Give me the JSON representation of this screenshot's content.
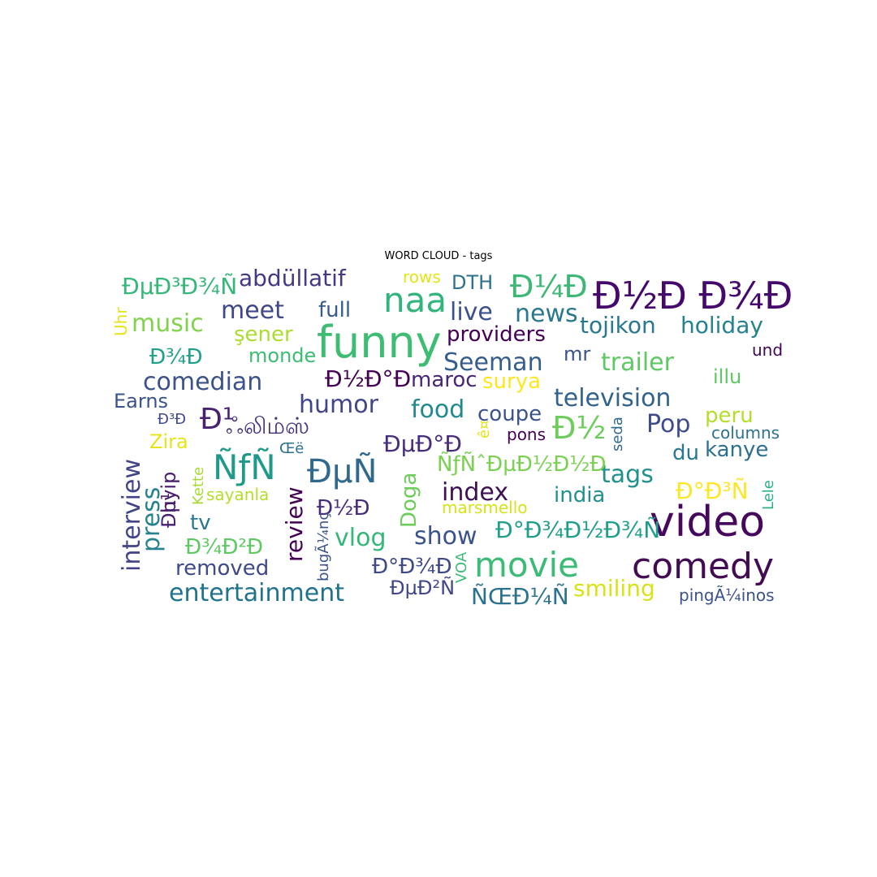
{
  "chart_data": {
    "type": "wordcloud",
    "title": "WORD CLOUD - tags",
    "words": [
      {
        "text": "Ð½Ð Ð¾Ð",
        "color": "#45086b",
        "size": 46
      },
      {
        "text": "video",
        "color": "#46085c",
        "size": 52
      },
      {
        "text": "funny",
        "color": "#3fbc73",
        "size": 54
      },
      {
        "text": "comedy",
        "color": "#440b55",
        "size": 44
      },
      {
        "text": "movie",
        "color": "#3bbb75",
        "size": 42
      },
      {
        "text": "naa",
        "color": "#32b57c",
        "size": 42
      },
      {
        "text": "ÑƒÑ",
        "color": "#1f9a8a",
        "size": 42
      },
      {
        "text": "ÐµÑ",
        "color": "#31688e",
        "size": 40
      },
      {
        "text": "Ð¼Ð",
        "color": "#3db775",
        "size": 38
      },
      {
        "text": "Ð½",
        "color": "#6ccd5a",
        "size": 38
      },
      {
        "text": "Ð¹",
        "color": "#482071",
        "size": 36
      },
      {
        "text": "entertainment",
        "color": "#21728d",
        "size": 30
      },
      {
        "text": "index",
        "color": "#3e1056",
        "size": 30
      },
      {
        "text": "Seeman",
        "color": "#355e8d",
        "size": 30
      },
      {
        "text": "comedian",
        "color": "#3b528b",
        "size": 30
      },
      {
        "text": "television",
        "color": "#33638d",
        "size": 30
      },
      {
        "text": "Pop",
        "color": "#3e4c8a",
        "size": 30
      },
      {
        "text": "humor",
        "color": "#404688",
        "size": 30
      },
      {
        "text": "food",
        "color": "#23898e",
        "size": 30
      },
      {
        "text": "show",
        "color": "#3a538b",
        "size": 30
      },
      {
        "text": "vlog",
        "color": "#35b779",
        "size": 30
      },
      {
        "text": "tags",
        "color": "#21918c",
        "size": 30
      },
      {
        "text": "trailer",
        "color": "#5ec962",
        "size": 30
      },
      {
        "text": "live",
        "color": "#3b518b",
        "size": 30
      },
      {
        "text": "news",
        "color": "#2a788e",
        "size": 30
      },
      {
        "text": "music",
        "color": "#81d34d",
        "size": 30
      },
      {
        "text": "meet",
        "color": "#3f4889",
        "size": 30
      },
      {
        "text": "interview",
        "color": "#414487",
        "size": 30
      },
      {
        "text": "press",
        "color": "#26828e",
        "size": 30
      },
      {
        "text": "review",
        "color": "#440154",
        "size": 28
      },
      {
        "text": "smiling",
        "color": "#d8e219",
        "size": 28
      },
      {
        "text": "ÑŒÐ¼Ñ",
        "color": "#2c728e",
        "size": 28
      },
      {
        "text": "Ð°Ð¾Ð½Ð¾Ñ",
        "color": "#1f9e89",
        "size": 28
      },
      {
        "text": "ÐµÐ³Ð¾Ñ",
        "color": "#35b779",
        "size": 28
      },
      {
        "text": "abdüllatif",
        "color": "#443983",
        "size": 28
      },
      {
        "text": "Ð½Ð°Ð",
        "color": "#440154",
        "size": 28
      },
      {
        "text": "Ð°Ð³Ñ",
        "color": "#fde725",
        "size": 28
      },
      {
        "text": "tojikon",
        "color": "#2a788e",
        "size": 28
      },
      {
        "text": "holiday",
        "color": "#26828e",
        "size": 28
      },
      {
        "text": "ÐµÐ°Ð",
        "color": "#472d7b",
        "size": 28
      },
      {
        "text": "ÑƒÑˆÐµÐ½Ð½Ð",
        "color": "#7ad151",
        "size": 26
      },
      {
        "text": "Ð°Ð¾Ð",
        "color": "#3e4989",
        "size": 26
      },
      {
        "text": "removed",
        "color": "#3e4a89",
        "size": 26
      },
      {
        "text": "Ð¾Ð²Ð",
        "color": "#5ec962",
        "size": 26
      },
      {
        "text": "Ð¾Ð",
        "color": "#1fa088",
        "size": 26
      },
      {
        "text": "full",
        "color": "#365c8d",
        "size": 26
      },
      {
        "text": "providers",
        "color": "#440154",
        "size": 26
      },
      {
        "text": "surya",
        "color": "#fde725",
        "size": 26
      },
      {
        "text": "maroc",
        "color": "#482677",
        "size": 26
      },
      {
        "text": "coupe",
        "color": "#3b528b",
        "size": 26
      },
      {
        "text": "peru",
        "color": "#b5de2b",
        "size": 26
      },
      {
        "text": "kanye",
        "color": "#2d708e",
        "size": 26
      },
      {
        "text": "du",
        "color": "#2a788e",
        "size": 26
      },
      {
        "text": "india",
        "color": "#21918c",
        "size": 26
      },
      {
        "text": "Doga",
        "color": "#6ccd5a",
        "size": 26
      },
      {
        "text": "Ð½Ð",
        "color": "#472c7a",
        "size": 26
      },
      {
        "text": "ÐµÐ²Ñ",
        "color": "#404688",
        "size": 24
      },
      {
        "text": "Ðµ¹",
        "color": "#481f70",
        "size": 24
      },
      {
        "text": "şener",
        "color": "#addc30",
        "size": 26
      },
      {
        "text": "monde",
        "color": "#3ebc73",
        "size": 24
      },
      {
        "text": "illu",
        "color": "#5ec962",
        "size": 24
      },
      {
        "text": "Earns",
        "color": "#3b528b",
        "size": 24
      },
      {
        "text": "Zira",
        "color": "#e7e419",
        "size": 24
      },
      {
        "text": "tv",
        "color": "#2a788e",
        "size": 26
      },
      {
        "text": "hyip",
        "color": "#481a6c",
        "size": 24
      },
      {
        "text": "DTH",
        "color": "#2c728e",
        "size": 24
      },
      {
        "text": "mr",
        "color": "#3b528b",
        "size": 24
      },
      {
        "text": "ஃலிம்ஸ்",
        "color": "#46327e",
        "size": 28
      },
      {
        "text": "und",
        "color": "#3e0751",
        "size": 20
      },
      {
        "text": "columns",
        "color": "#2c728e",
        "size": 20
      },
      {
        "text": "pingÃ¼inos",
        "color": "#3b528b",
        "size": 20
      },
      {
        "text": "pons",
        "color": "#440154",
        "size": 20
      },
      {
        "text": "sayanla",
        "color": "#b5de2b",
        "size": 20
      },
      {
        "text": "marsmello",
        "color": "#d8e219",
        "size": 20
      },
      {
        "text": "rows",
        "color": "#e5e419",
        "size": 20
      },
      {
        "text": "Uhr",
        "color": "#e5e419",
        "size": 20
      },
      {
        "text": "Ð³Ð",
        "color": "#3e4a89",
        "size": 18
      },
      {
        "text": "Œë",
        "color": "#2c728e",
        "size": 18
      },
      {
        "text": "Kette",
        "color": "#a5db36",
        "size": 18
      },
      {
        "text": "ê¤",
        "color": "#e5e419",
        "size": 18
      },
      {
        "text": "seda",
        "color": "#31688e",
        "size": 18
      },
      {
        "text": "Lele",
        "color": "#2ab07f",
        "size": 18
      },
      {
        "text": "bugÃ¼nç",
        "color": "#3b528b",
        "size": 18
      },
      {
        "text": "VOA",
        "color": "#3bbb75",
        "size": 18
      }
    ]
  }
}
